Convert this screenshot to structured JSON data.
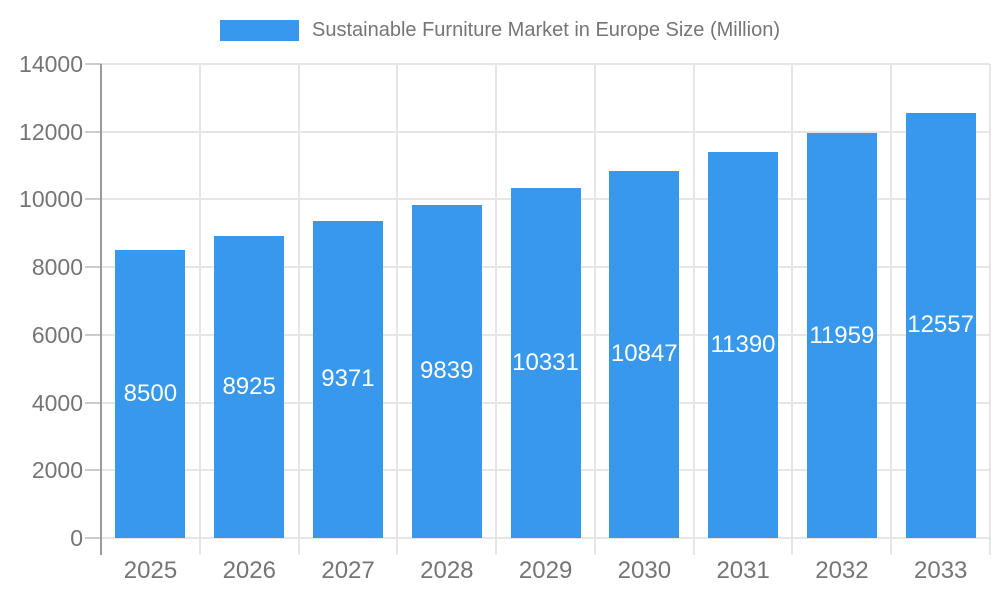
{
  "chart_data": {
    "type": "bar",
    "title": "Sustainable Furniture Market in Europe Size (Million)",
    "categories": [
      "2025",
      "2026",
      "2027",
      "2028",
      "2029",
      "2030",
      "2031",
      "2032",
      "2033"
    ],
    "values": [
      8500,
      8925,
      9371,
      9839,
      10331,
      10847,
      11390,
      11959,
      12557
    ],
    "series": [
      {
        "name": "Sustainable Furniture Market in Europe Size (Million)",
        "values": [
          8500,
          8925,
          9371,
          9839,
          10331,
          10847,
          11390,
          11959,
          12557
        ]
      }
    ],
    "xlabel": "",
    "ylabel": "",
    "ylim": [
      0,
      14000
    ],
    "yticks": [
      0,
      2000,
      4000,
      6000,
      8000,
      10000,
      12000,
      14000
    ],
    "grid": true,
    "legend_position": "top",
    "value_labels": "inside-center",
    "colors": {
      "bar": "#3898EC",
      "bar_label": "#ffffff",
      "axis_text": "#757575",
      "grid_line": "#e6e6e6",
      "axis_line": "#999999",
      "tick_line": "#cccccc",
      "background": "#ffffff"
    }
  },
  "legend": {
    "label": "Sustainable Furniture Market in Europe Size (Million)",
    "swatch_color": "#3898EC"
  }
}
